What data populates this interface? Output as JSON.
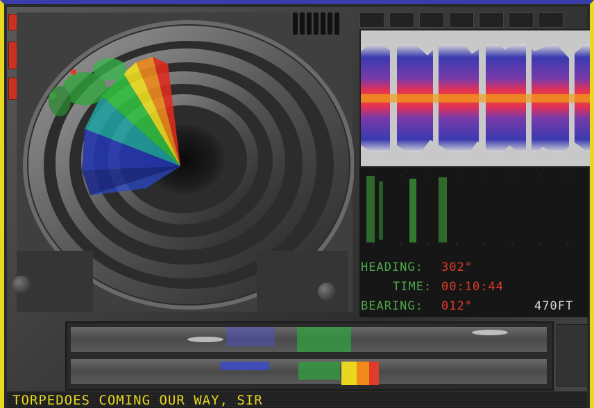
{
  "readout": {
    "heading_label": "HEADING:",
    "heading_value": "302°",
    "time_label": "TIME:",
    "time_value": "00:10:44",
    "bearing_label": "BEARING:",
    "bearing_value": "012°",
    "depth": "470FT"
  },
  "message": "TORPEDOES COMING OUR WAY, SIR",
  "colors": {
    "frame_top": "#3b3ea8",
    "frame_side": "#e8d820",
    "readout_label": "#4fa84a",
    "readout_value": "#e03a28",
    "message_text": "#e8d820"
  }
}
